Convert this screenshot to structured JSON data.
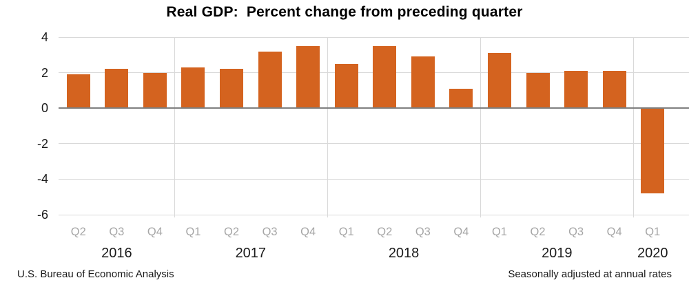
{
  "title": "Real GDP:  Percent change from preceding quarter",
  "footer": {
    "left": "U.S. Bureau of Economic Analysis",
    "right": "Seasonally adjusted at annual rates"
  },
  "chart_data": {
    "type": "bar",
    "title": "Real GDP:  Percent change from preceding quarter",
    "categories": [
      "Q2",
      "Q3",
      "Q4",
      "Q1",
      "Q2",
      "Q3",
      "Q4",
      "Q1",
      "Q2",
      "Q3",
      "Q4",
      "Q1",
      "Q2",
      "Q3",
      "Q4",
      "Q1"
    ],
    "values": [
      1.9,
      2.2,
      2.0,
      2.3,
      2.2,
      3.2,
      3.5,
      2.5,
      3.5,
      2.9,
      1.1,
      3.1,
      2.0,
      2.1,
      2.1,
      -4.8
    ],
    "years": [
      {
        "label": "2016",
        "slots": [
          0,
          2
        ]
      },
      {
        "label": "2017",
        "slots": [
          3,
          6
        ]
      },
      {
        "label": "2018",
        "slots": [
          7,
          10
        ]
      },
      {
        "label": "2019",
        "slots": [
          11,
          14
        ]
      },
      {
        "label": "2020",
        "slots": [
          15,
          15
        ]
      }
    ],
    "y_ticks": [
      4,
      2,
      0,
      -2,
      -4,
      -6
    ],
    "ylim": [
      -6,
      4
    ],
    "xlabel": "",
    "ylabel": "",
    "grid": true,
    "legend_position": "none",
    "bar_color": "#d4631f",
    "gridline_color": "#d9d9d9",
    "zero_line_color": "#7f7f7f",
    "separator_color": "#d9d9d9",
    "quarter_label_color": "#a6a6a6"
  }
}
